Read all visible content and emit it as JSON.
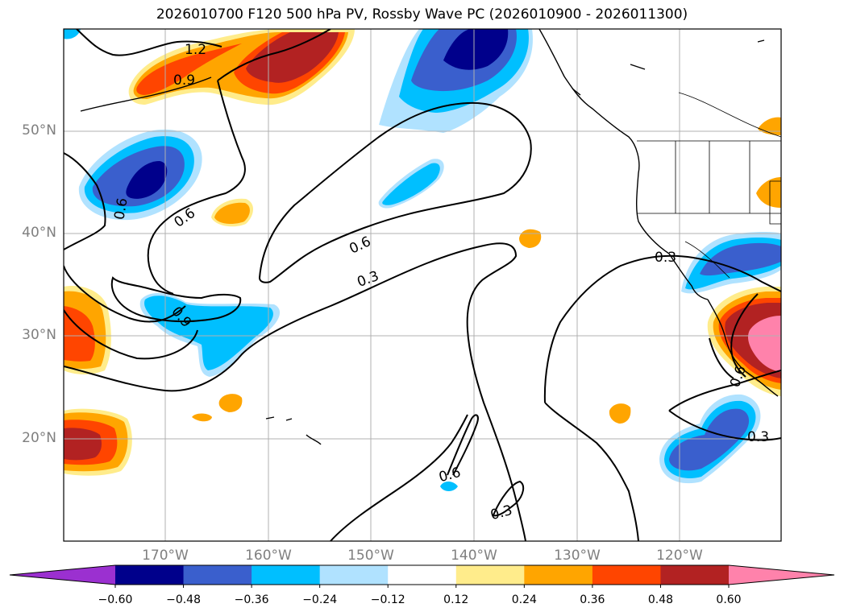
{
  "title": "2026010700 F120 500 hPa PV, Rossby Wave PC (2026010900 - 2026011300)",
  "lat_labels": [
    "50°N",
    "40°N",
    "30°N",
    "20°N"
  ],
  "lon_labels": [
    "170°W",
    "160°W",
    "150°W",
    "140°W",
    "130°W",
    "120°W"
  ],
  "contour_labels": [
    "1.2",
    "0.9",
    "0.6",
    "0.6",
    "0.3",
    "0.9",
    "0.6",
    "0.3",
    "0.6",
    "0.3",
    "0.6",
    "0.3"
  ],
  "colorbar": {
    "ticks": [
      "−0.60",
      "−0.48",
      "−0.36",
      "−0.24",
      "−0.12",
      "0.12",
      "0.24",
      "0.36",
      "0.48",
      "0.60"
    ],
    "colors": [
      "#9b30d0",
      "#00008b",
      "#3a5fcd",
      "#00bfff",
      "#b0e2ff",
      "#ffffff",
      "#ffec8b",
      "#ffa500",
      "#ff4500",
      "#b22222",
      "#ff82ab",
      "#ff82ab"
    ]
  },
  "colors": {
    "neg_dark": "#00008b",
    "neg_mid": "#3a5fcd",
    "neg": "#00bfff",
    "neg_light": "#b0e2ff",
    "pos_light": "#ffec8b",
    "pos": "#ffa500",
    "pos_mid": "#ff4500",
    "pos_dark": "#b22222",
    "pos_max": "#ff82ab"
  }
}
